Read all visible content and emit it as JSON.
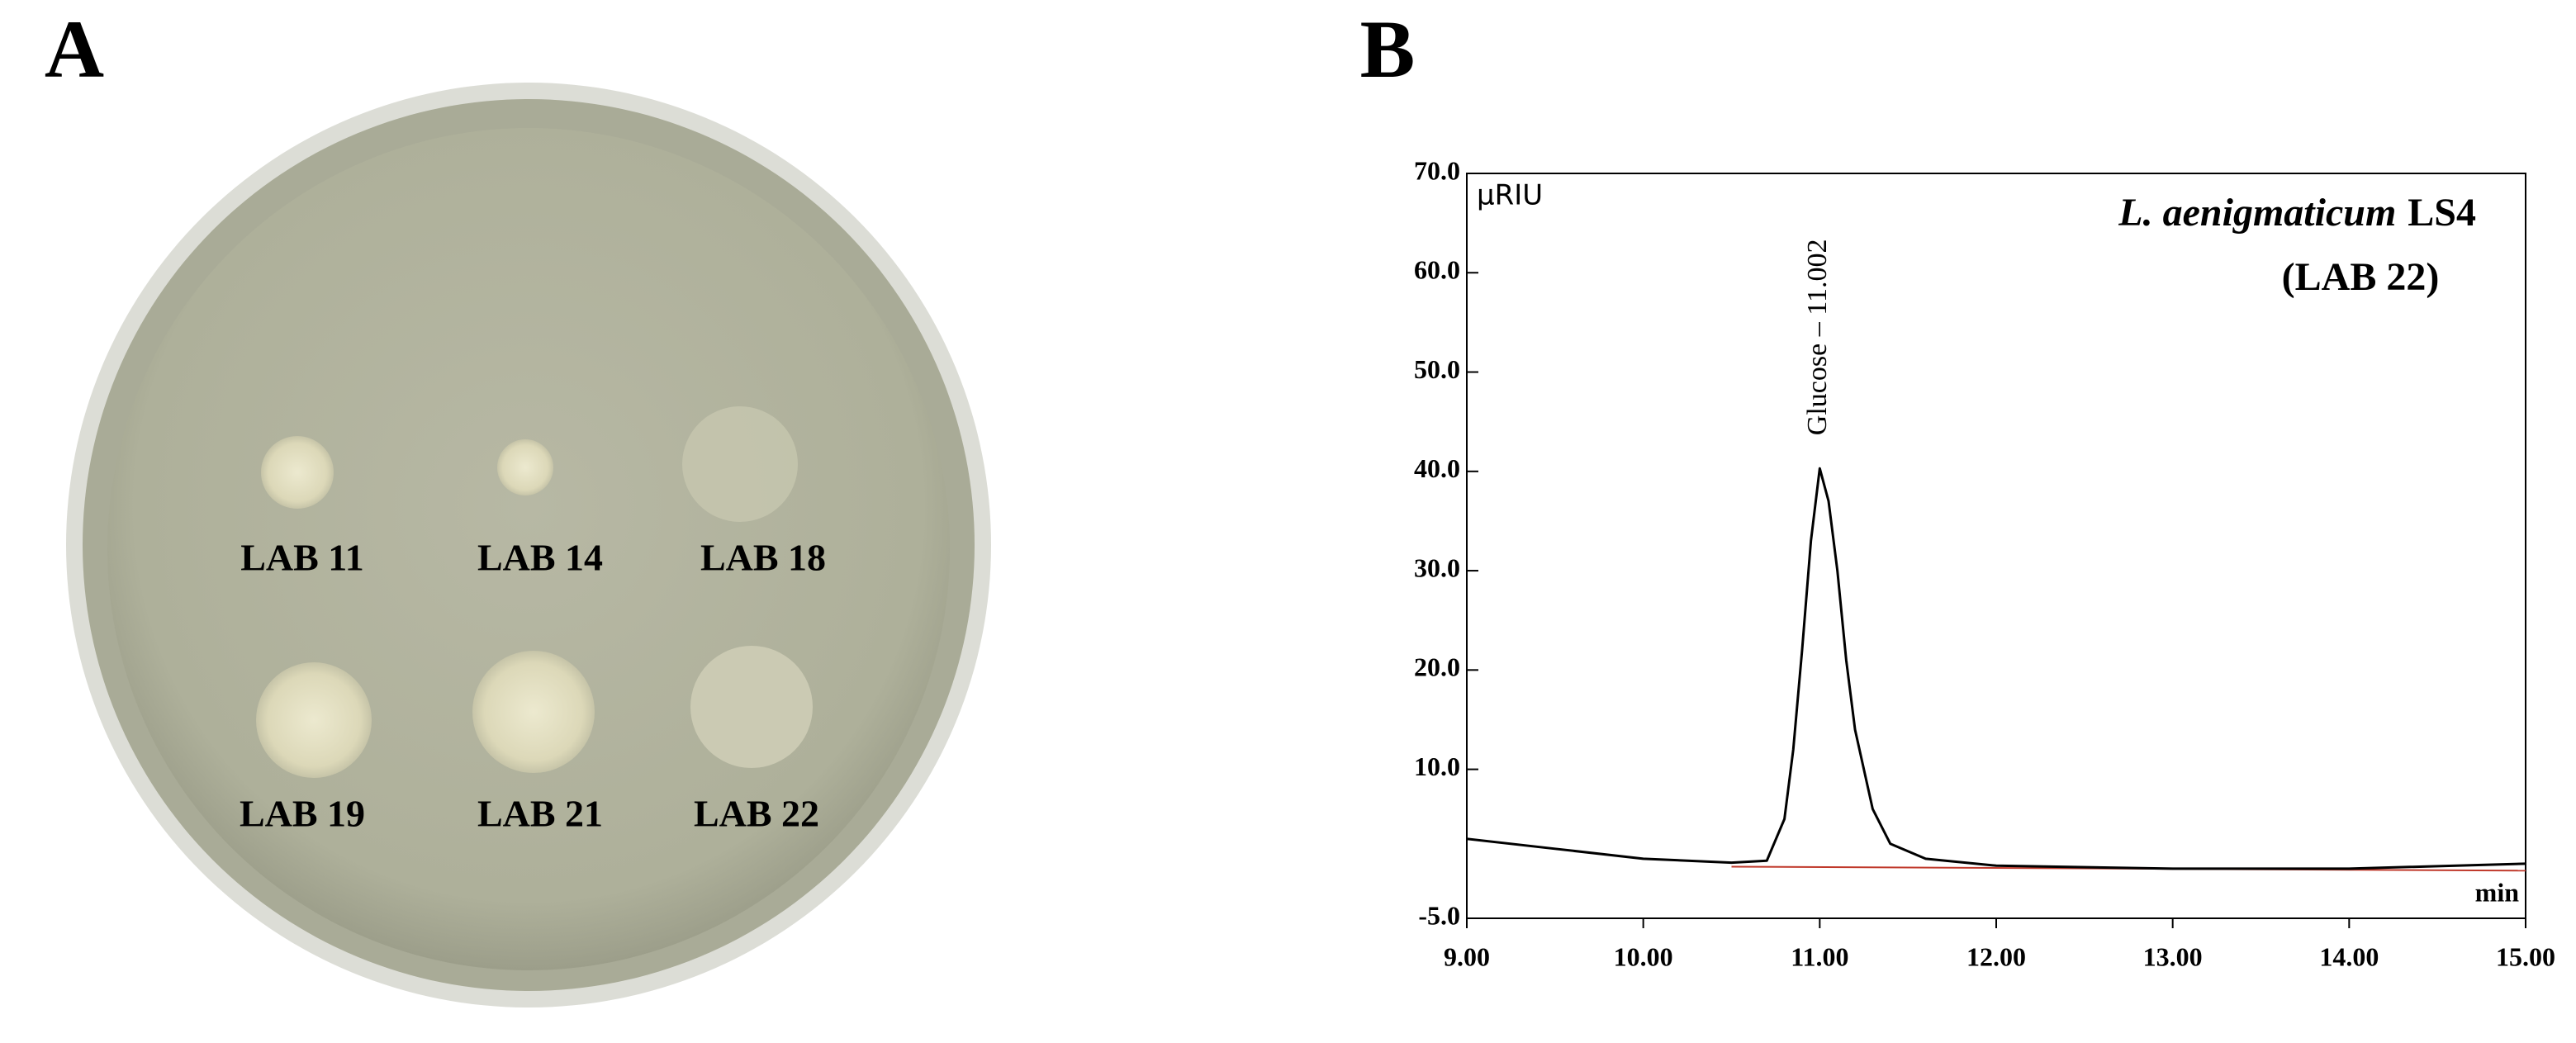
{
  "panel_a": {
    "label": "A",
    "colony_labels": [
      "LAB 11",
      "LAB 14",
      "LAB 18",
      "LAB 19",
      "LAB 21",
      "LAB 22"
    ]
  },
  "chart_data": {
    "type": "line",
    "panel_label": "B",
    "title_italic": "L. aenigmaticum",
    "title_rest": "LS4",
    "subtitle": "(LAB 22)",
    "y_label": "µRIU",
    "x_label": "min",
    "annotation": "Glucose – 11.002",
    "x": [
      9.0,
      9.5,
      10.0,
      10.5,
      10.7,
      10.8,
      10.85,
      10.9,
      10.95,
      11.0,
      11.05,
      11.1,
      11.15,
      11.2,
      11.3,
      11.4,
      11.6,
      12.0,
      13.0,
      14.0,
      15.0
    ],
    "values": [
      3.0,
      2.0,
      1.0,
      0.6,
      0.8,
      5,
      12,
      22,
      33,
      40.3,
      37,
      30,
      21,
      14,
      6,
      2.5,
      1.0,
      0.3,
      0,
      0,
      0.5
    ],
    "color": "#000000",
    "baseline": {
      "x": [
        10.5,
        15.0
      ],
      "values": [
        0.2,
        -0.2
      ],
      "color": "#c0392b"
    },
    "xlim": [
      9,
      15
    ],
    "ylim": [
      -5,
      70
    ],
    "xticks": [
      {
        "value": 9,
        "label": "9.00"
      },
      {
        "value": 10,
        "label": "10.00"
      },
      {
        "value": 11,
        "label": "11.00"
      },
      {
        "value": 12,
        "label": "12.00"
      },
      {
        "value": 13,
        "label": "13.00"
      },
      {
        "value": 14,
        "label": "14.00"
      },
      {
        "value": 15,
        "label": "15.00"
      }
    ],
    "yticks": [
      {
        "value": -5,
        "label": "-5.0"
      },
      {
        "value": 10,
        "label": "10.0"
      },
      {
        "value": 20,
        "label": "20.0"
      },
      {
        "value": 30,
        "label": "30.0"
      },
      {
        "value": 40,
        "label": "40.0"
      },
      {
        "value": 50,
        "label": "50.0"
      },
      {
        "value": 60,
        "label": "60.0"
      },
      {
        "value": 70,
        "label": "70.0"
      }
    ]
  }
}
